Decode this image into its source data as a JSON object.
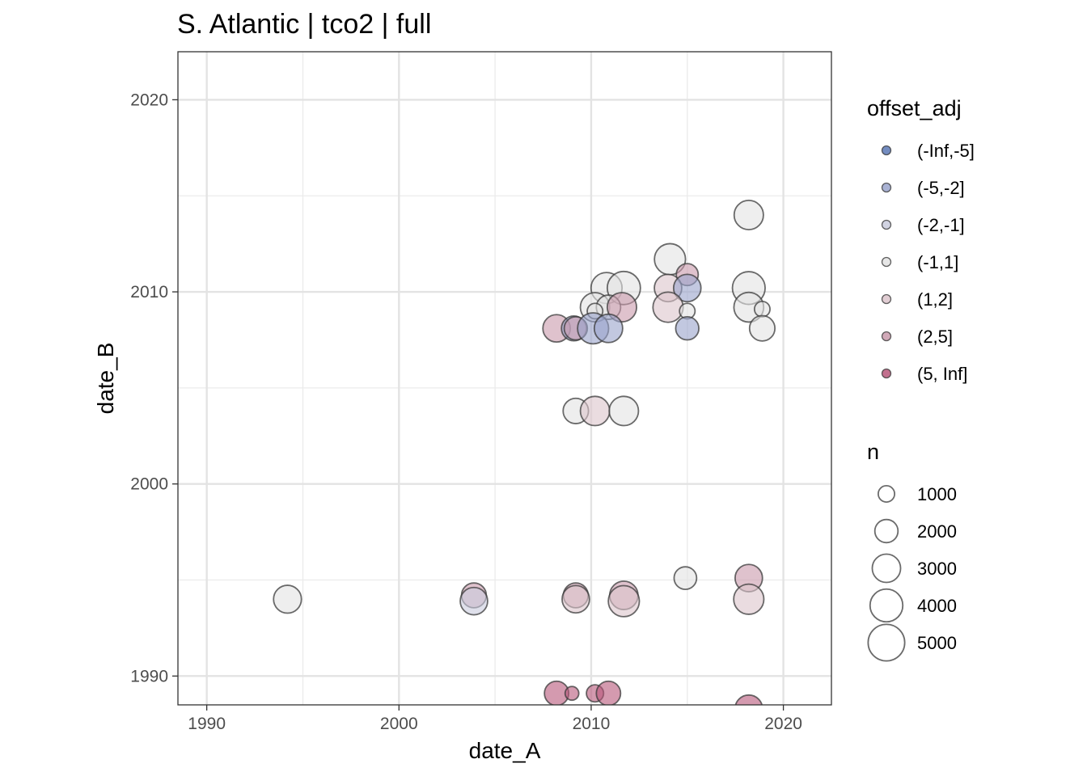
{
  "chart_data": {
    "type": "scatter",
    "title": "S. Atlantic | tco2 | full",
    "xlabel": "date_A",
    "ylabel": "date_B",
    "xlim": [
      1988.5,
      2022.5
    ],
    "ylim": [
      1988.5,
      2022.5
    ],
    "x_ticks": [
      "1990",
      "2000",
      "2010",
      "2020"
    ],
    "y_ticks": [
      "1990",
      "2000",
      "2010",
      "2020"
    ],
    "grid": true,
    "legend_position": "right",
    "color_legend": {
      "title": "offset_adj",
      "entries": [
        {
          "label": "(-Inf,-5]",
          "color": "#5b78b5"
        },
        {
          "label": "(-5,-2]",
          "color": "#9aa4cc"
        },
        {
          "label": "(-2,-1]",
          "color": "#c9cbdd"
        },
        {
          "label": "(-1,1]",
          "color": "#e2e2e2"
        },
        {
          "label": "(1,2]",
          "color": "#dcc4cb"
        },
        {
          "label": "(2,5]",
          "color": "#c99aab"
        },
        {
          "label": "(5, Inf]",
          "color": "#b7577a"
        }
      ]
    },
    "size_legend": {
      "title": "n",
      "entries": [
        {
          "label": "1000",
          "value": 1000
        },
        {
          "label": "2000",
          "value": 2000
        },
        {
          "label": "3000",
          "value": 3000
        },
        {
          "label": "4000",
          "value": 4000
        },
        {
          "label": "5000",
          "value": 5000
        }
      ]
    },
    "points": [
      {
        "x": 2018.2,
        "y": 2014.0,
        "n": 3200,
        "offset": "(-1,1]"
      },
      {
        "x": 2014.1,
        "y": 2011.7,
        "n": 3600,
        "offset": "(-1,1]"
      },
      {
        "x": 2015.0,
        "y": 2010.9,
        "n": 1800,
        "offset": "(2,5]"
      },
      {
        "x": 2010.8,
        "y": 2010.2,
        "n": 3600,
        "offset": "(-1,1]"
      },
      {
        "x": 2011.7,
        "y": 2010.2,
        "n": 4100,
        "offset": "(-1,1]"
      },
      {
        "x": 2014.0,
        "y": 2010.2,
        "n": 2800,
        "offset": "(1,2]"
      },
      {
        "x": 2015.0,
        "y": 2010.2,
        "n": 2800,
        "offset": "(-5,-2]"
      },
      {
        "x": 2018.2,
        "y": 2010.2,
        "n": 4000,
        "offset": "(-1,1]"
      },
      {
        "x": 2010.2,
        "y": 2009.2,
        "n": 3200,
        "offset": "(-1,1]"
      },
      {
        "x": 2010.9,
        "y": 2009.2,
        "n": 2200,
        "offset": "(-1,1]"
      },
      {
        "x": 2011.6,
        "y": 2009.2,
        "n": 3200,
        "offset": "(2,5]"
      },
      {
        "x": 2014.0,
        "y": 2009.2,
        "n": 3400,
        "offset": "(1,2]"
      },
      {
        "x": 2018.2,
        "y": 2009.2,
        "n": 3300,
        "offset": "(-1,1]"
      },
      {
        "x": 2010.2,
        "y": 2009.0,
        "n": 900,
        "offset": "(-1,1]"
      },
      {
        "x": 2015.0,
        "y": 2009.0,
        "n": 900,
        "offset": "(-1,1]"
      },
      {
        "x": 2018.9,
        "y": 2009.1,
        "n": 900,
        "offset": "(-1,1]"
      },
      {
        "x": 2008.2,
        "y": 2008.1,
        "n": 2800,
        "offset": "(2,5]"
      },
      {
        "x": 2009.1,
        "y": 2008.1,
        "n": 2300,
        "offset": "(-5,-2]"
      },
      {
        "x": 2009.2,
        "y": 2008.1,
        "n": 2000,
        "offset": "(2,5]"
      },
      {
        "x": 2010.1,
        "y": 2008.1,
        "n": 3600,
        "offset": "(-5,-2]"
      },
      {
        "x": 2010.9,
        "y": 2008.1,
        "n": 3000,
        "offset": "(-5,-2]"
      },
      {
        "x": 2015.0,
        "y": 2008.1,
        "n": 2000,
        "offset": "(-5,-2]"
      },
      {
        "x": 2018.9,
        "y": 2008.1,
        "n": 2400,
        "offset": "(-1,1]"
      },
      {
        "x": 2009.2,
        "y": 2003.8,
        "n": 2400,
        "offset": "(-1,1]"
      },
      {
        "x": 2010.2,
        "y": 2003.8,
        "n": 3200,
        "offset": "(1,2]"
      },
      {
        "x": 2011.7,
        "y": 2003.8,
        "n": 3200,
        "offset": "(-1,1]"
      },
      {
        "x": 1994.2,
        "y": 1994.0,
        "n": 2900,
        "offset": "(-1,1]"
      },
      {
        "x": 2003.9,
        "y": 1994.2,
        "n": 2300,
        "offset": "(2,5]"
      },
      {
        "x": 2003.9,
        "y": 1993.9,
        "n": 2800,
        "offset": "(-2,-1]"
      },
      {
        "x": 2009.2,
        "y": 1994.2,
        "n": 2300,
        "offset": "(2,5]"
      },
      {
        "x": 2009.2,
        "y": 1994.0,
        "n": 2800,
        "offset": "(1,2]"
      },
      {
        "x": 2011.7,
        "y": 1994.2,
        "n": 3000,
        "offset": "(2,5]"
      },
      {
        "x": 2011.7,
        "y": 1993.9,
        "n": 3600,
        "offset": "(1,2]"
      },
      {
        "x": 2014.9,
        "y": 1995.1,
        "n": 1900,
        "offset": "(-1,1]"
      },
      {
        "x": 2018.2,
        "y": 1995.1,
        "n": 2800,
        "offset": "(2,5]"
      },
      {
        "x": 2018.2,
        "y": 1994.0,
        "n": 3400,
        "offset": "(1,2]"
      },
      {
        "x": 2008.2,
        "y": 1989.1,
        "n": 2200,
        "offset": "(5, Inf]"
      },
      {
        "x": 2009.0,
        "y": 1989.1,
        "n": 700,
        "offset": "(5, Inf]"
      },
      {
        "x": 2010.2,
        "y": 1989.1,
        "n": 1100,
        "offset": "(5, Inf]"
      },
      {
        "x": 2010.9,
        "y": 1989.1,
        "n": 2200,
        "offset": "(5, Inf]"
      },
      {
        "x": 2018.2,
        "y": 1988.3,
        "n": 2800,
        "offset": "(5, Inf]"
      }
    ]
  }
}
